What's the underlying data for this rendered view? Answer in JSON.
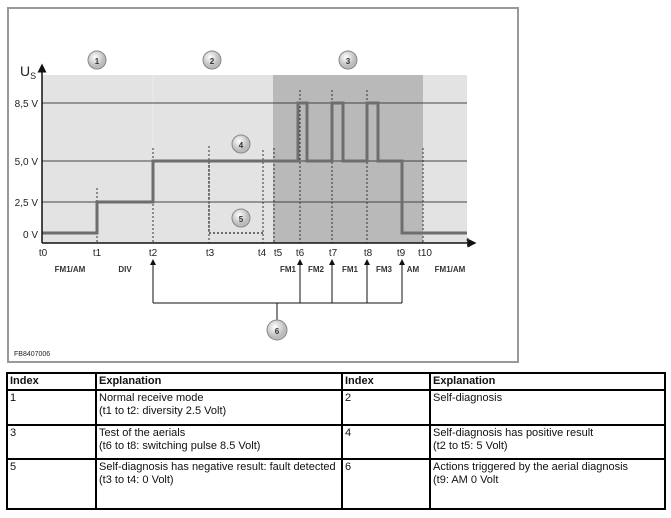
{
  "diagram": {
    "y_axis_label": "U",
    "y_axis_subscript": "S",
    "x_axis_label": "t",
    "levels": [
      "8,5 V",
      "5,0 V",
      "2,5 V",
      "0 V"
    ],
    "times": [
      "t0",
      "t1",
      "t2",
      "t3",
      "t4",
      "t5",
      "t6",
      "t7",
      "t8",
      "t9",
      "t10"
    ],
    "modes": [
      "FM1/AM",
      "DIV",
      "FM1",
      "FM2",
      "FM1",
      "FM3",
      "AM",
      "FM1/AM"
    ],
    "callouts": [
      "1",
      "2",
      "3",
      "4",
      "5",
      "6"
    ],
    "figure_id": "FB8407006",
    "colors": {
      "background": "#e3e3e3",
      "test_region": "#b9b9b9",
      "signal": "#6e6e6e"
    }
  },
  "table": {
    "headers": [
      "Index",
      "Explanation",
      "Index",
      "Explanation"
    ],
    "rows": [
      {
        "i1": "1",
        "e1": "Normal receive mode\n(t1 to t2: diversity 2.5 Volt)",
        "i2": "2",
        "e2": "Self-diagnosis"
      },
      {
        "i1": "3",
        "e1": "Test of the aerials\n(t6 to t8: switching pulse 8.5 Volt)",
        "i2": "4",
        "e2": "Self-diagnosis has positive result\n(t2 to t5: 5 Volt)"
      },
      {
        "i1": "5",
        "e1": "Self-diagnosis has negative result: fault detected\n(t3 to t4: 0 Volt)",
        "i2": "6",
        "e2": "Actions triggered by the aerial diagnosis\n(t9: AM 0 Volt"
      }
    ]
  }
}
